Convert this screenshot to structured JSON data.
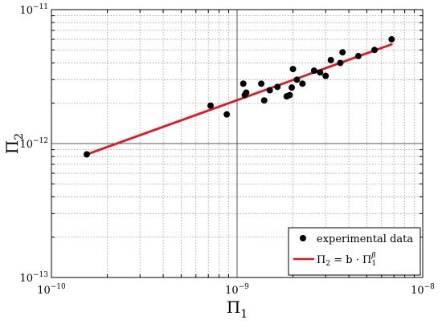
{
  "chart_data": {
    "type": "scatter",
    "xscale": "log",
    "yscale": "log",
    "xlim": [
      1e-10,
      1e-08
    ],
    "ylim": [
      1e-13,
      1e-11
    ],
    "grid": true,
    "legend_position": "bottom-right",
    "xlabel": "Π",
    "xlabel_sub": "1",
    "ylabel": "Π",
    "ylabel_sub": "2",
    "x_ticks": [
      {
        "base": "10",
        "exp": "−10"
      },
      {
        "base": "10",
        "exp": "−9"
      },
      {
        "base": "10",
        "exp": "−8"
      }
    ],
    "y_ticks": [
      {
        "base": "10",
        "exp": "−13"
      },
      {
        "base": "10",
        "exp": "−12"
      },
      {
        "base": "10",
        "exp": "−11"
      }
    ],
    "series": [
      {
        "name": "experimental data",
        "kind": "scatter",
        "color": "#000000",
        "points": [
          [
            1.55e-10,
            8.3e-13
          ],
          [
            7.2e-10,
            1.92e-12
          ],
          [
            8.8e-10,
            1.65e-12
          ],
          [
            1.08e-09,
            2.8e-12
          ],
          [
            1.12e-09,
            2.4e-12
          ],
          [
            1.1e-09,
            2.3e-12
          ],
          [
            1.35e-09,
            2.8e-12
          ],
          [
            1.4e-09,
            2.1e-12
          ],
          [
            1.5e-09,
            2.5e-12
          ],
          [
            1.65e-09,
            2.65e-12
          ],
          [
            1.85e-09,
            2.25e-12
          ],
          [
            1.92e-09,
            2.3e-12
          ],
          [
            1.97e-09,
            2.62e-12
          ],
          [
            2e-09,
            3.6e-12
          ],
          [
            2.1e-09,
            3e-12
          ],
          [
            2.25e-09,
            2.8e-12
          ],
          [
            2.6e-09,
            3.5e-12
          ],
          [
            2.8e-09,
            3.4e-12
          ],
          [
            3e-09,
            3.2e-12
          ],
          [
            3.2e-09,
            4.2e-12
          ],
          [
            3.6e-09,
            4e-12
          ],
          [
            3.7e-09,
            4.8e-12
          ],
          [
            4.5e-09,
            4.5e-12
          ],
          [
            5.5e-09,
            5e-12
          ],
          [
            6.8e-09,
            6e-12
          ]
        ]
      },
      {
        "name": "Π2 = b · Π1^β",
        "kind": "line",
        "color": "#e8141e",
        "points": [
          [
            1.55e-10,
            8.3e-13
          ],
          [
            6.8e-09,
            5.5e-12
          ]
        ]
      }
    ],
    "legend": {
      "scatter_label": "experimental data",
      "fit_label": {
        "lhs": "Π",
        "lhs_sub": "2",
        "rhs_prefix": " = b · ",
        "rhs": "Π",
        "rhs_sub": "1",
        "rhs_sup": "β"
      }
    }
  }
}
